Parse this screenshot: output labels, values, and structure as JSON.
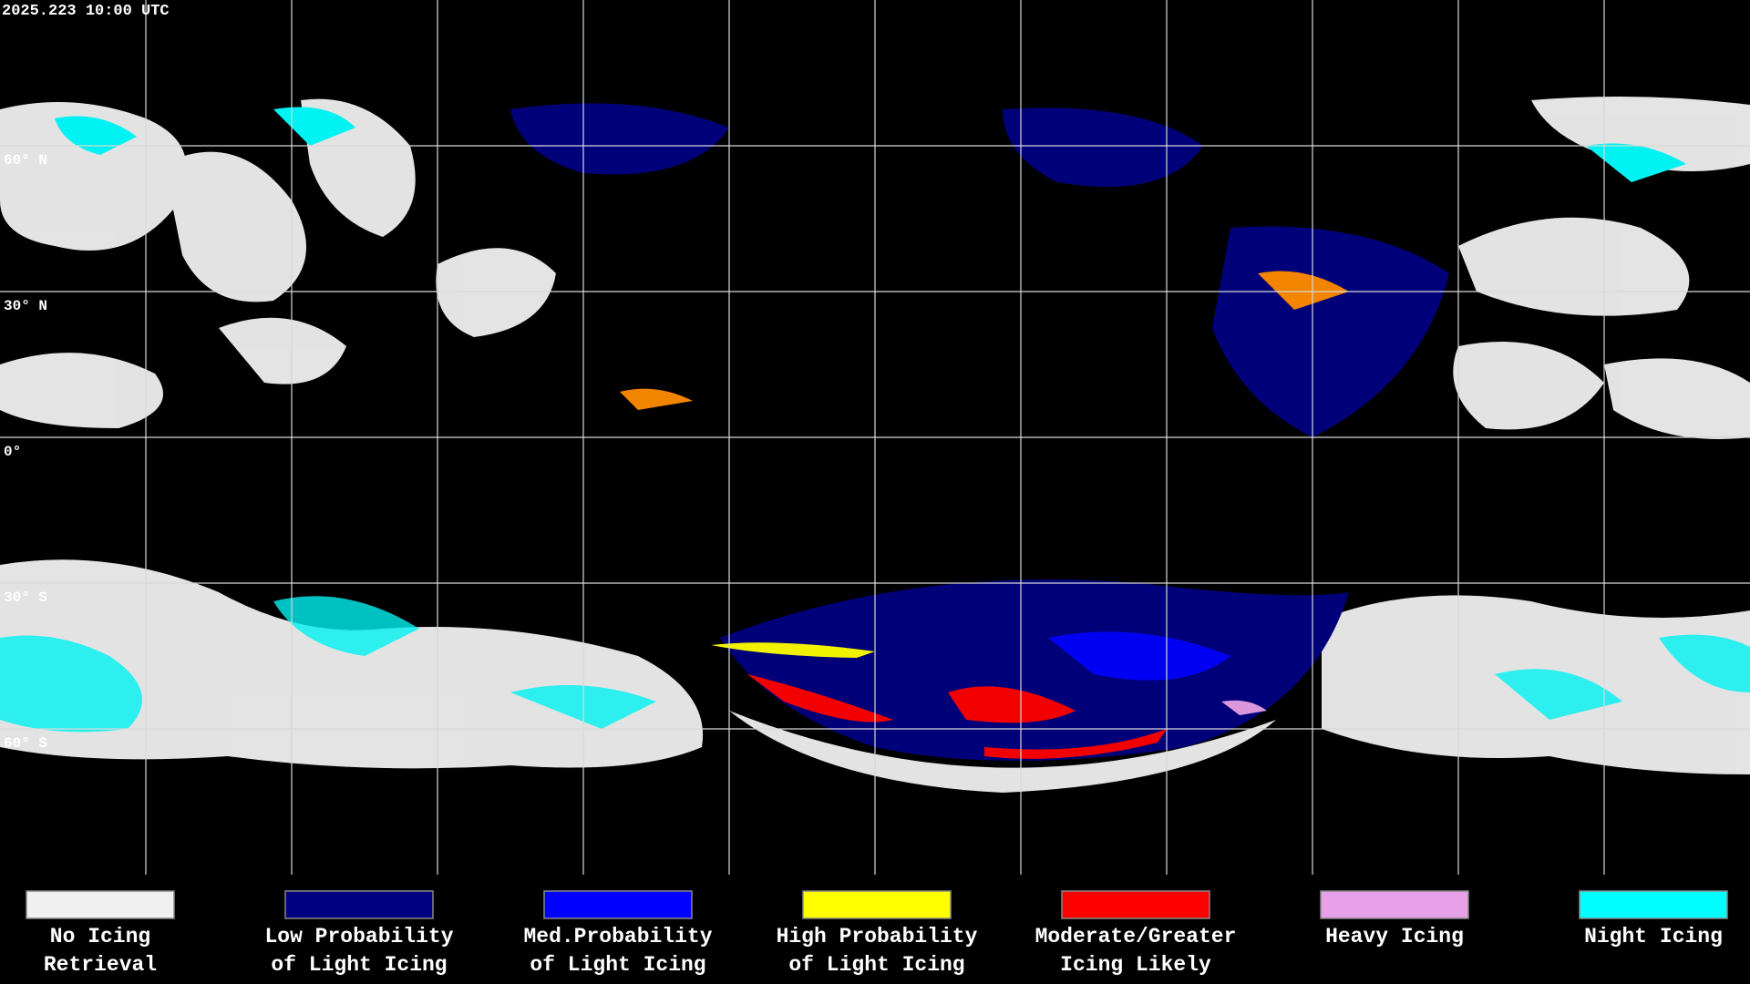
{
  "header": {
    "timestamp": "2025.223 10:00 UTC"
  },
  "map": {
    "latitude_labels": [
      "60° N",
      "30° N",
      "0°",
      "30° S",
      "60° S"
    ]
  },
  "legend": {
    "items": [
      {
        "label_lines": [
          "No Icing",
          "Retrieval"
        ],
        "color": "#f0f0f0"
      },
      {
        "label_lines": [
          "Low Probability",
          "of Light Icing"
        ],
        "color": "#000080"
      },
      {
        "label_lines": [
          "Med.Probability",
          "of Light Icing"
        ],
        "color": "#0000ff"
      },
      {
        "label_lines": [
          "High Probability",
          "of Light Icing"
        ],
        "color": "#ffff00"
      },
      {
        "label_lines": [
          "Moderate/Greater",
          "Icing Likely"
        ],
        "color": "#ff0000"
      },
      {
        "label_lines": [
          "Heavy Icing"
        ],
        "color": "#e8a0e8"
      },
      {
        "label_lines": [
          "Night Icing"
        ],
        "color": "#00ffff"
      }
    ]
  }
}
